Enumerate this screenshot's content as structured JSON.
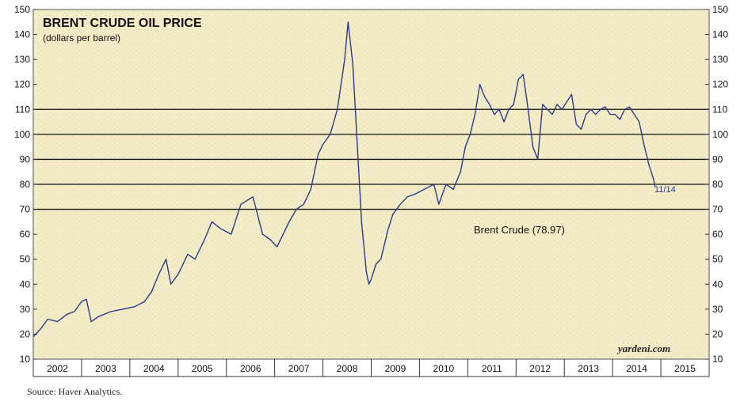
{
  "chart_data": {
    "type": "line",
    "title": "BRENT CRUDE OIL PRICE",
    "subtitle": "(dollars per barrel)",
    "ylim": [
      10,
      150
    ],
    "yticks": [
      10,
      20,
      30,
      40,
      50,
      60,
      70,
      80,
      90,
      100,
      110,
      120,
      130,
      140,
      150
    ],
    "reference_lines": [
      70,
      80,
      90,
      100,
      110
    ],
    "xlim": [
      2002,
      2016
    ],
    "categories": [
      "2002",
      "2003",
      "2004",
      "2005",
      "2006",
      "2007",
      "2008",
      "2009",
      "2010",
      "2011",
      "2012",
      "2013",
      "2014",
      "2015"
    ],
    "series": [
      {
        "name": "Brent Crude",
        "color": "#2b3a8c",
        "x": [
          2002.0,
          2002.15,
          2002.3,
          2002.5,
          2002.7,
          2002.85,
          2003.0,
          2003.1,
          2003.2,
          2003.35,
          2003.6,
          2003.85,
          2004.1,
          2004.3,
          2004.45,
          2004.6,
          2004.75,
          2004.85,
          2005.0,
          2005.2,
          2005.35,
          2005.55,
          2005.7,
          2005.9,
          2006.1,
          2006.3,
          2006.55,
          2006.75,
          2006.9,
          2007.05,
          2007.3,
          2007.45,
          2007.6,
          2007.75,
          2007.9,
          2008.0,
          2008.15,
          2008.3,
          2008.45,
          2008.52,
          2008.62,
          2008.7,
          2008.8,
          2008.9,
          2008.95,
          2009.0,
          2009.1,
          2009.2,
          2009.35,
          2009.45,
          2009.6,
          2009.75,
          2009.9,
          2010.1,
          2010.3,
          2010.4,
          2010.55,
          2010.7,
          2010.85,
          2010.95,
          2011.05,
          2011.15,
          2011.25,
          2011.35,
          2011.45,
          2011.55,
          2011.65,
          2011.75,
          2011.85,
          2011.95,
          2012.05,
          2012.15,
          2012.25,
          2012.35,
          2012.45,
          2012.55,
          2012.65,
          2012.75,
          2012.85,
          2012.95,
          2013.05,
          2013.15,
          2013.25,
          2013.35,
          2013.45,
          2013.55,
          2013.65,
          2013.75,
          2013.85,
          2013.95,
          2014.05,
          2014.15,
          2014.25,
          2014.35,
          2014.45,
          2014.55,
          2014.65,
          2014.75,
          2014.85,
          2014.88
        ],
        "values": [
          19,
          22,
          26,
          25,
          28,
          29,
          33,
          34,
          25,
          27,
          29,
          30,
          31,
          33,
          37,
          44,
          50,
          40,
          44,
          52,
          50,
          58,
          65,
          62,
          60,
          72,
          75,
          60,
          58,
          55,
          65,
          70,
          72,
          78,
          92,
          96,
          100,
          110,
          130,
          145,
          128,
          100,
          65,
          45,
          40,
          42,
          48,
          50,
          62,
          68,
          72,
          75,
          76,
          78,
          80,
          72,
          80,
          78,
          85,
          95,
          100,
          108,
          120,
          115,
          112,
          108,
          110,
          105,
          110,
          112,
          122,
          124,
          110,
          95,
          90,
          112,
          110,
          108,
          112,
          110,
          113,
          116,
          104,
          102,
          108,
          110,
          108,
          110,
          111,
          108,
          108,
          106,
          110,
          111,
          108,
          105,
          96,
          88,
          82,
          78.97
        ]
      }
    ],
    "series_label": "Brent Crude (78.97)",
    "end_label": "11/14",
    "brand": "yardeni.com"
  },
  "source": "Source: Haver Analytics."
}
